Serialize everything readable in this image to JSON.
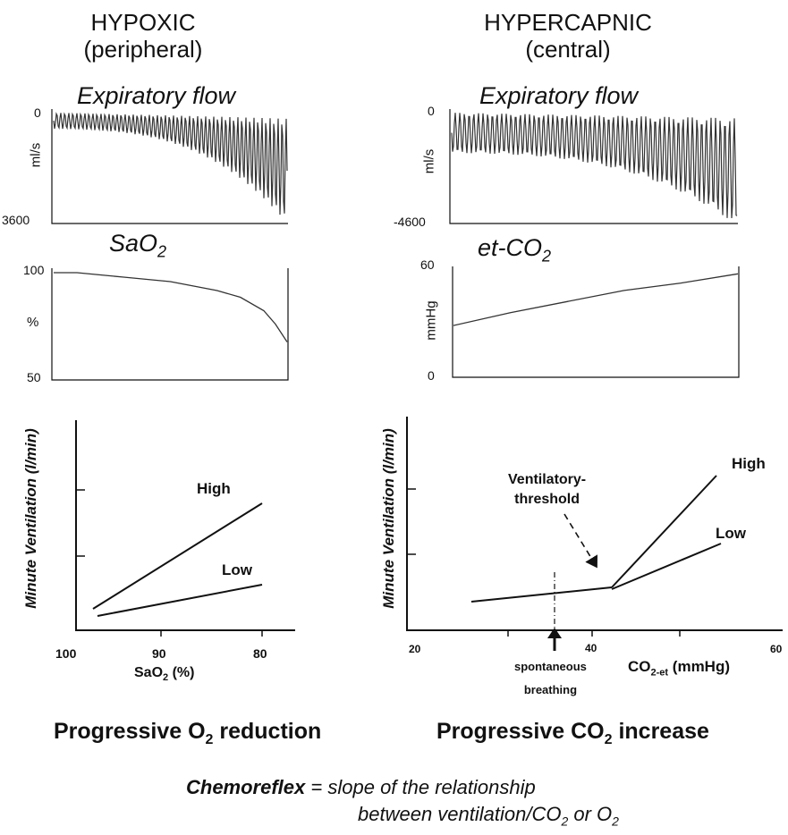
{
  "hypoxic": {
    "title": "HYPOXIC",
    "subtitle": "(peripheral)",
    "flow": {
      "label": "Expiratory flow",
      "ylabel": "ml/s",
      "ymin": "3600",
      "ymax": "0"
    },
    "sat": {
      "label": "SaO",
      "label_sub": "2",
      "ylabel": "%",
      "ymin": "50",
      "ymax": "100"
    },
    "summary": "Progressive O",
    "summary_sub": "2",
    "summary_rest": " reduction"
  },
  "hypercapnic": {
    "title": "HYPERCAPNIC",
    "subtitle": "(central)",
    "flow": {
      "label": "Expiratory flow",
      "ylabel": "ml/s",
      "ymin": "-4600",
      "ymax": "0"
    },
    "co2": {
      "label": "et-CO",
      "label_sub": "2",
      "ylabel": "mmHg",
      "ymin": "0",
      "ymax": "60"
    },
    "summary": "Progressive CO",
    "summary_sub": "2",
    "summary_rest": " increase",
    "threshold_label": [
      "Ventilatory-",
      "threshold"
    ],
    "spontaneous_label": [
      "spontaneous",
      "breathing"
    ]
  },
  "footer": {
    "bold": "Chemoreflex",
    "eq": " = ",
    "line1": "slope of the relationship",
    "line2a": "between ventilation/CO",
    "line2b": " or O"
  },
  "chart_data": [
    {
      "type": "line",
      "title": "Expiratory flow",
      "ylabel": "ml/s",
      "ylim": [
        3600,
        0
      ],
      "note": "oscillating breathing waveform with amplitude increasing towards the right"
    },
    {
      "type": "line",
      "title": "SaO2",
      "ylabel": "%",
      "ylim": [
        50,
        100
      ],
      "x": [
        0,
        0.1,
        0.2,
        0.3,
        0.4,
        0.5,
        0.6,
        0.7,
        0.8,
        0.9,
        0.95,
        1.0
      ],
      "values": [
        98,
        98,
        97,
        96,
        95,
        94,
        92,
        90,
        87,
        81,
        75,
        67
      ]
    },
    {
      "type": "line",
      "title": "Expiratory flow",
      "ylabel": "ml/s",
      "ylim": [
        -4600,
        0
      ],
      "note": "oscillating breathing waveform with amplitude increasing towards the right"
    },
    {
      "type": "line",
      "title": "et-CO2",
      "ylabel": "mmHg",
      "ylim": [
        0,
        60
      ],
      "x": [
        0,
        0.2,
        0.4,
        0.6,
        0.8,
        1.0
      ],
      "values": [
        28,
        35,
        41,
        47,
        51,
        56
      ]
    },
    {
      "type": "line",
      "xlabel": "SaO2 (%)",
      "ylabel": "Minute Ventilation (l/min)",
      "x_ticks": [
        "100",
        "90",
        "80"
      ],
      "xlim": [
        100,
        76
      ],
      "series": [
        {
          "name": "High",
          "x": [
            98,
            80
          ],
          "y": [
            1.3,
            7.4
          ]
        },
        {
          "name": "Low",
          "x": [
            97.5,
            80
          ],
          "y": [
            0.9,
            3.0
          ]
        }
      ]
    },
    {
      "type": "line",
      "xlabel": "CO2-et (mmHg)",
      "ylabel": "Minute Ventilation (l/min)",
      "x_ticks": [
        "20",
        "40",
        "60"
      ],
      "xlim": [
        20,
        60
      ],
      "series": [
        {
          "name": "",
          "x": [
            23,
            41.5
          ],
          "y": [
            1.6,
            2.6
          ]
        },
        {
          "name": "High",
          "x": [
            41.5,
            54.5
          ],
          "y": [
            2.6,
            9.1
          ]
        },
        {
          "name": "Low",
          "x": [
            41.5,
            55
          ],
          "y": [
            2.6,
            5.4
          ]
        }
      ],
      "annotations": [
        "Ventilatory-threshold",
        "spontaneous breathing"
      ]
    }
  ]
}
